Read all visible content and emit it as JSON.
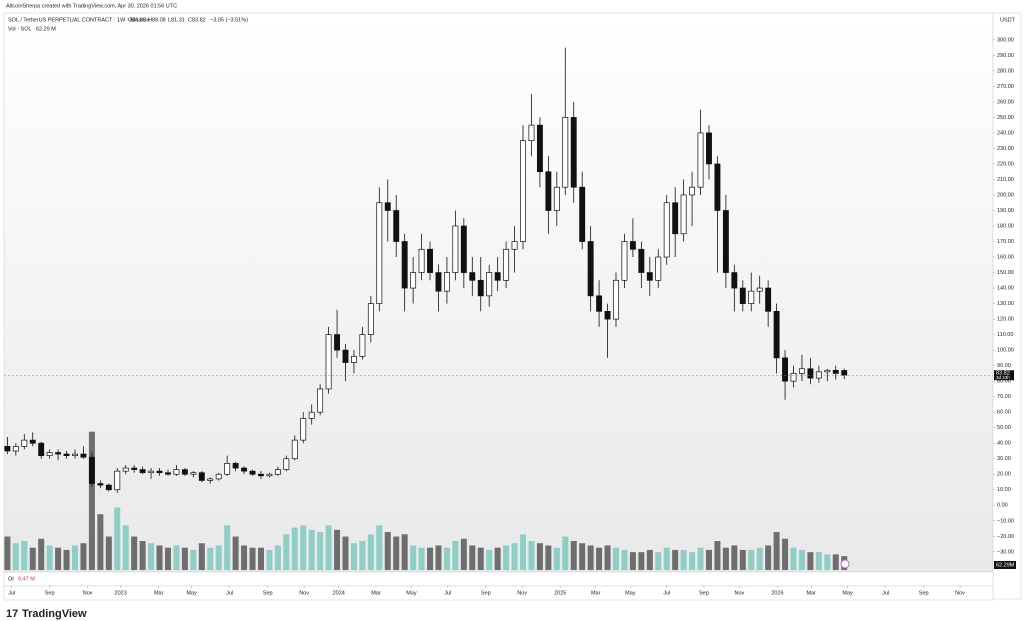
{
  "header": {
    "credit": "AltcoinSherpa created with TradingView.com, Apr 30, 2026 01:56 UTC"
  },
  "chart_data": {
    "type": "candlestick",
    "symbol": "SOL / TetherUS PERPETUAL CONTRACT · 1W · Binance",
    "legend_values": [
      "O86.88",
      "H88.08",
      "L81.31",
      "C83.82",
      "−3.05 (−3.51%)"
    ],
    "volume_title": "Vol · SOL",
    "volume_value_label": "62.29 M",
    "oi_title": "OI",
    "oi_value_label": "9.47 M",
    "axis_unit": "USDT",
    "price_label": "83.82",
    "countdown_label": "3d 23h",
    "volume_tag": "62.29M",
    "up_color": "#ffffff",
    "down_color": "#111111",
    "wick_color": "#111111",
    "volume_up_color": "#8fcdc7",
    "volume_down_color": "#6e6e6e",
    "candles": [
      [
        38,
        44,
        33,
        35
      ],
      [
        35,
        40,
        32,
        38
      ],
      [
        38,
        46,
        36,
        42
      ],
      [
        42,
        47,
        38,
        40
      ],
      [
        40,
        41,
        30,
        32
      ],
      [
        32,
        36,
        30,
        34
      ],
      [
        34,
        36,
        29,
        33
      ],
      [
        33,
        35,
        30,
        32
      ],
      [
        32,
        36,
        30,
        33
      ],
      [
        33,
        38,
        30,
        31
      ],
      [
        31,
        34,
        12,
        14
      ],
      [
        14,
        16,
        11,
        13
      ],
      [
        13,
        14,
        9,
        10
      ],
      [
        10,
        24,
        8,
        22
      ],
      [
        22,
        26,
        20,
        24
      ],
      [
        24,
        26,
        21,
        23
      ],
      [
        23,
        25,
        20,
        21
      ],
      [
        21,
        24,
        17,
        22
      ],
      [
        22,
        24,
        19,
        21
      ],
      [
        21,
        23,
        19,
        20
      ],
      [
        20,
        26,
        19,
        23
      ],
      [
        23,
        24,
        19,
        20
      ],
      [
        20,
        22,
        18,
        21
      ],
      [
        21,
        22,
        15,
        16
      ],
      [
        16,
        18,
        14,
        17
      ],
      [
        17,
        21,
        16,
        20
      ],
      [
        20,
        32,
        19,
        27
      ],
      [
        27,
        28,
        22,
        24
      ],
      [
        24,
        25,
        20,
        22
      ],
      [
        22,
        23,
        19,
        20
      ],
      [
        20,
        22,
        17,
        19
      ],
      [
        19,
        21,
        18,
        20
      ],
      [
        20,
        25,
        19,
        23
      ],
      [
        23,
        32,
        22,
        30
      ],
      [
        30,
        45,
        29,
        42
      ],
      [
        42,
        60,
        40,
        56
      ],
      [
        56,
        65,
        52,
        60
      ],
      [
        60,
        78,
        58,
        75
      ],
      [
        75,
        115,
        72,
        110
      ],
      [
        110,
        126,
        95,
        100
      ],
      [
        100,
        104,
        80,
        92
      ],
      [
        92,
        100,
        85,
        96
      ],
      [
        96,
        115,
        94,
        110
      ],
      [
        110,
        135,
        105,
        130
      ],
      [
        130,
        205,
        125,
        195
      ],
      [
        195,
        210,
        170,
        190
      ],
      [
        190,
        200,
        160,
        170
      ],
      [
        170,
        175,
        125,
        140
      ],
      [
        140,
        160,
        130,
        150
      ],
      [
        150,
        175,
        145,
        165
      ],
      [
        165,
        170,
        145,
        150
      ],
      [
        150,
        155,
        125,
        138
      ],
      [
        138,
        160,
        130,
        150
      ],
      [
        150,
        190,
        145,
        180
      ],
      [
        180,
        185,
        140,
        150
      ],
      [
        150,
        160,
        135,
        145
      ],
      [
        145,
        160,
        125,
        135
      ],
      [
        135,
        155,
        128,
        150
      ],
      [
        150,
        160,
        138,
        145
      ],
      [
        145,
        170,
        140,
        165
      ],
      [
        165,
        180,
        150,
        170
      ],
      [
        170,
        245,
        165,
        235
      ],
      [
        235,
        265,
        225,
        245
      ],
      [
        245,
        250,
        205,
        215
      ],
      [
        215,
        225,
        175,
        190
      ],
      [
        190,
        215,
        180,
        205
      ],
      [
        205,
        295,
        200,
        250
      ],
      [
        250,
        260,
        195,
        205
      ],
      [
        205,
        215,
        165,
        170
      ],
      [
        170,
        180,
        125,
        135
      ],
      [
        135,
        145,
        115,
        125
      ],
      [
        125,
        130,
        95,
        120
      ],
      [
        120,
        150,
        115,
        145
      ],
      [
        145,
        175,
        140,
        170
      ],
      [
        170,
        185,
        160,
        165
      ],
      [
        165,
        170,
        140,
        150
      ],
      [
        150,
        160,
        135,
        145
      ],
      [
        145,
        165,
        140,
        160
      ],
      [
        160,
        200,
        155,
        195
      ],
      [
        195,
        205,
        160,
        175
      ],
      [
        175,
        210,
        170,
        200
      ],
      [
        200,
        215,
        180,
        205
      ],
      [
        205,
        255,
        200,
        240
      ],
      [
        240,
        245,
        210,
        220
      ],
      [
        220,
        225,
        150,
        190
      ],
      [
        190,
        200,
        140,
        150
      ],
      [
        150,
        155,
        125,
        140
      ],
      [
        140,
        145,
        125,
        130
      ],
      [
        130,
        150,
        125,
        138
      ],
      [
        138,
        148,
        130,
        140
      ],
      [
        140,
        145,
        115,
        125
      ],
      [
        125,
        130,
        85,
        95
      ],
      [
        95,
        100,
        68,
        80
      ],
      [
        80,
        90,
        76,
        85
      ],
      [
        85,
        97,
        80,
        88
      ],
      [
        88,
        95,
        78,
        82
      ],
      [
        82,
        90,
        79,
        86
      ],
      [
        86,
        88,
        80,
        87
      ],
      [
        87,
        90,
        81,
        85
      ],
      [
        86.88,
        88.08,
        81.31,
        83.82
      ]
    ],
    "volume": [
      150,
      120,
      130,
      100,
      140,
      110,
      100,
      90,
      110,
      120,
      620,
      250,
      150,
      280,
      200,
      150,
      130,
      120,
      110,
      100,
      110,
      100,
      90,
      120,
      100,
      110,
      200,
      150,
      110,
      100,
      100,
      90,
      110,
      160,
      190,
      200,
      180,
      170,
      200,
      180,
      150,
      120,
      130,
      160,
      200,
      170,
      150,
      160,
      110,
      100,
      100,
      110,
      100,
      130,
      140,
      110,
      100,
      90,
      100,
      110,
      120,
      160,
      130,
      120,
      110,
      100,
      150,
      130,
      120,
      110,
      100,
      110,
      100,
      90,
      80,
      80,
      90,
      80,
      100,
      90,
      90,
      80,
      100,
      90,
      130,
      100,
      110,
      90,
      90,
      100,
      110,
      170,
      140,
      100,
      90,
      80,
      80,
      70,
      70,
      62.29
    ],
    "ylim": [
      -43,
      316
    ],
    "y2lim": [
      0,
      650
    ],
    "yticks": [
      {
        "value": -30,
        "label": "−30.00"
      },
      {
        "value": -20,
        "label": "−20.00"
      },
      {
        "value": -10,
        "label": "−10.00"
      },
      {
        "value": 0,
        "label": "0.00"
      },
      {
        "value": 10,
        "label": "10.00"
      },
      {
        "value": 20,
        "label": "20.00"
      },
      {
        "value": 30,
        "label": "30.00"
      },
      {
        "value": 40,
        "label": "40.00"
      },
      {
        "value": 50,
        "label": "50.00"
      },
      {
        "value": 60,
        "label": "60.00"
      },
      {
        "value": 70,
        "label": "70.00"
      },
      {
        "value": 80,
        "label": "80.00"
      },
      {
        "value": 90,
        "label": "90.00"
      },
      {
        "value": 100,
        "label": "100.00"
      },
      {
        "value": 110,
        "label": "110.00"
      },
      {
        "value": 120,
        "label": "120.00"
      },
      {
        "value": 130,
        "label": "130.00"
      },
      {
        "value": 140,
        "label": "140.00"
      },
      {
        "value": 150,
        "label": "150.00"
      },
      {
        "value": 160,
        "label": "160.00"
      },
      {
        "value": 170,
        "label": "170.00"
      },
      {
        "value": 180,
        "label": "180.00"
      },
      {
        "value": 190,
        "label": "190.00"
      },
      {
        "value": 200,
        "label": "200.00"
      },
      {
        "value": 210,
        "label": "210.00"
      },
      {
        "value": 220,
        "label": "220.00"
      },
      {
        "value": 230,
        "label": "230.00"
      },
      {
        "value": 240,
        "label": "240.00"
      },
      {
        "value": 250,
        "label": "250.00"
      },
      {
        "value": 260,
        "label": "260.00"
      },
      {
        "value": 270,
        "label": "270.00"
      },
      {
        "value": 280,
        "label": "280.00"
      },
      {
        "value": 290,
        "label": "290.00"
      },
      {
        "value": 300,
        "label": "300.00"
      }
    ],
    "xticks": [
      {
        "value": 0.5,
        "label": "Jul"
      },
      {
        "value": 5,
        "label": "Sep"
      },
      {
        "value": 9.5,
        "label": "Nov"
      },
      {
        "value": 13.4,
        "label": "2023"
      },
      {
        "value": 17.9,
        "label": "Mar"
      },
      {
        "value": 21.8,
        "label": "May"
      },
      {
        "value": 26.3,
        "label": "Jul"
      },
      {
        "value": 30.8,
        "label": "Sep"
      },
      {
        "value": 35.1,
        "label": "Nov"
      },
      {
        "value": 39.2,
        "label": "2024"
      },
      {
        "value": 43.6,
        "label": "Mar"
      },
      {
        "value": 47.8,
        "label": "May"
      },
      {
        "value": 52.1,
        "label": "Jul"
      },
      {
        "value": 56.6,
        "label": "Sep"
      },
      {
        "value": 60.9,
        "label": "Nov"
      },
      {
        "value": 65.4,
        "label": "2025"
      },
      {
        "value": 69.6,
        "label": "Mar"
      },
      {
        "value": 73.7,
        "label": "May"
      },
      {
        "value": 78,
        "label": "Jul"
      },
      {
        "value": 82.4,
        "label": "Sep"
      },
      {
        "value": 86.6,
        "label": "Nov"
      },
      {
        "value": 91.1,
        "label": "2026"
      },
      {
        "value": 95.1,
        "label": "Mar"
      },
      {
        "value": 99.4,
        "label": "May"
      },
      {
        "value": 103.9,
        "label": "Jul"
      },
      {
        "value": 108.4,
        "label": "Sep"
      },
      {
        "value": 112.7,
        "label": "Nov"
      }
    ],
    "xlim": [
      -0.4,
      116.6
    ]
  },
  "footer": {
    "logo": "TradingView"
  }
}
